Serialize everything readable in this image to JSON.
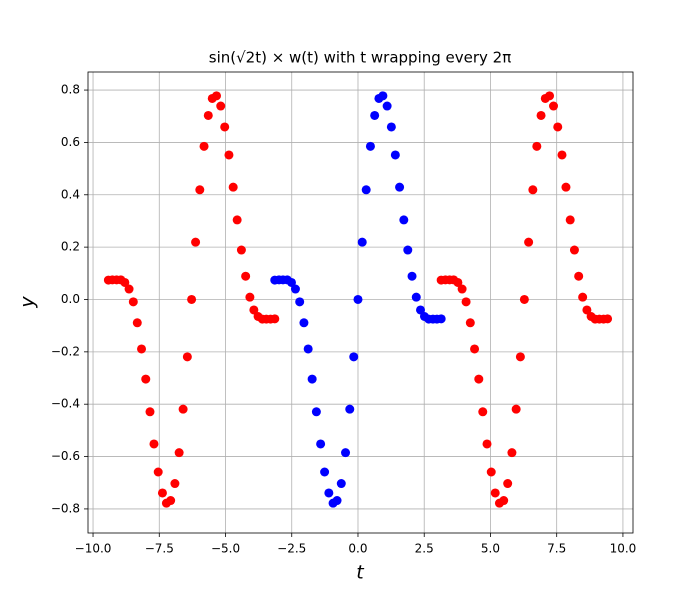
{
  "chart_data": {
    "type": "scatter",
    "title": "sin(√2t) × w(t) with t wrapping every 2π",
    "xlabel": "t",
    "ylabel": "y",
    "xlim": [
      -10.19,
      10.38
    ],
    "ylim": [
      -0.892,
      0.869
    ],
    "grid": true,
    "xticks": [
      {
        "value": -10,
        "label": "−10.0"
      },
      {
        "value": -7.5,
        "label": "−7.5"
      },
      {
        "value": -5,
        "label": "−5.0"
      },
      {
        "value": -2.5,
        "label": "−2.5"
      },
      {
        "value": 0,
        "label": "0.0"
      },
      {
        "value": 2.5,
        "label": "2.5"
      },
      {
        "value": 5,
        "label": "5.0"
      },
      {
        "value": 7.5,
        "label": "7.5"
      },
      {
        "value": 10,
        "label": "10.0"
      }
    ],
    "yticks": [
      {
        "value": -0.8,
        "label": "−0.8"
      },
      {
        "value": -0.6,
        "label": "−0.6"
      },
      {
        "value": -0.4,
        "label": "−0.4"
      },
      {
        "value": -0.2,
        "label": "−0.2"
      },
      {
        "value": 0,
        "label": "0.0"
      },
      {
        "value": 0.2,
        "label": "0.2"
      },
      {
        "value": 0.4,
        "label": "0.4"
      },
      {
        "value": 0.6,
        "label": "0.6"
      },
      {
        "value": 0.8,
        "label": "0.8"
      }
    ],
    "series": [
      {
        "color": "#ff0000",
        "x": [
          -9.42,
          -9.27,
          -9.11,
          -8.95,
          -8.8,
          -8.64,
          -8.48,
          -8.33,
          -8.17,
          -8.01,
          -7.85,
          -7.7,
          -7.54,
          -7.38,
          -7.23,
          -7.07,
          -6.91,
          -6.75,
          -6.6,
          -6.44,
          -6.28,
          -6.13,
          -5.97,
          -5.81,
          -5.65,
          -5.5,
          -5.34,
          -5.18,
          -5.03,
          -4.87,
          -4.71,
          -4.56,
          -4.4,
          -4.24,
          -4.08,
          -3.93,
          -3.77,
          -3.61,
          -3.46,
          -3.3,
          -3.14
        ],
        "values": [
          0.074,
          0.075,
          0.075,
          0.075,
          0.065,
          0.04,
          -0.009,
          -0.089,
          -0.189,
          -0.304,
          -0.429,
          -0.552,
          -0.659,
          -0.739,
          -0.778,
          -0.768,
          -0.703,
          -0.585,
          -0.419,
          -0.219,
          0,
          0.219,
          0.419,
          0.585,
          0.703,
          0.768,
          0.778,
          0.739,
          0.659,
          0.552,
          0.429,
          0.304,
          0.189,
          0.089,
          0.009,
          -0.04,
          -0.065,
          -0.075,
          -0.075,
          -0.075,
          -0.074
        ]
      },
      {
        "color": "#0000ff",
        "x": [
          -3.14,
          -2.98,
          -2.83,
          -2.67,
          -2.51,
          -2.36,
          -2.2,
          -2.04,
          -1.88,
          -1.73,
          -1.57,
          -1.41,
          -1.26,
          -1.1,
          -0.94,
          -0.79,
          -0.63,
          -0.47,
          -0.31,
          -0.16,
          0,
          0.16,
          0.31,
          0.47,
          0.63,
          0.79,
          0.94,
          1.1,
          1.26,
          1.41,
          1.57,
          1.73,
          1.88,
          2.04,
          2.2,
          2.36,
          2.51,
          2.67,
          2.83,
          2.98,
          3.14
        ],
        "values": [
          0.074,
          0.075,
          0.075,
          0.075,
          0.065,
          0.04,
          -0.009,
          -0.089,
          -0.189,
          -0.304,
          -0.429,
          -0.552,
          -0.659,
          -0.739,
          -0.778,
          -0.768,
          -0.703,
          -0.585,
          -0.419,
          -0.219,
          0,
          0.219,
          0.419,
          0.585,
          0.703,
          0.768,
          0.778,
          0.739,
          0.659,
          0.552,
          0.429,
          0.304,
          0.189,
          0.089,
          0.009,
          -0.04,
          -0.065,
          -0.075,
          -0.075,
          -0.075,
          -0.074
        ]
      },
      {
        "color": "#ff0000",
        "x": [
          3.14,
          3.3,
          3.46,
          3.61,
          3.77,
          3.93,
          4.08,
          4.24,
          4.4,
          4.56,
          4.71,
          4.87,
          5.03,
          5.18,
          5.34,
          5.5,
          5.65,
          5.81,
          5.97,
          6.13,
          6.28,
          6.44,
          6.6,
          6.75,
          6.91,
          7.07,
          7.23,
          7.38,
          7.54,
          7.7,
          7.85,
          8.01,
          8.17,
          8.33,
          8.48,
          8.64,
          8.8,
          8.95,
          9.11,
          9.27,
          9.42
        ],
        "values": [
          0.074,
          0.075,
          0.075,
          0.075,
          0.065,
          0.04,
          -0.009,
          -0.089,
          -0.189,
          -0.304,
          -0.429,
          -0.552,
          -0.659,
          -0.739,
          -0.778,
          -0.768,
          -0.703,
          -0.585,
          -0.419,
          -0.219,
          0,
          0.219,
          0.419,
          0.585,
          0.703,
          0.768,
          0.778,
          0.739,
          0.659,
          0.552,
          0.429,
          0.304,
          0.189,
          0.089,
          0.009,
          -0.04,
          -0.065,
          -0.075,
          -0.075,
          -0.075,
          -0.074
        ]
      }
    ]
  }
}
